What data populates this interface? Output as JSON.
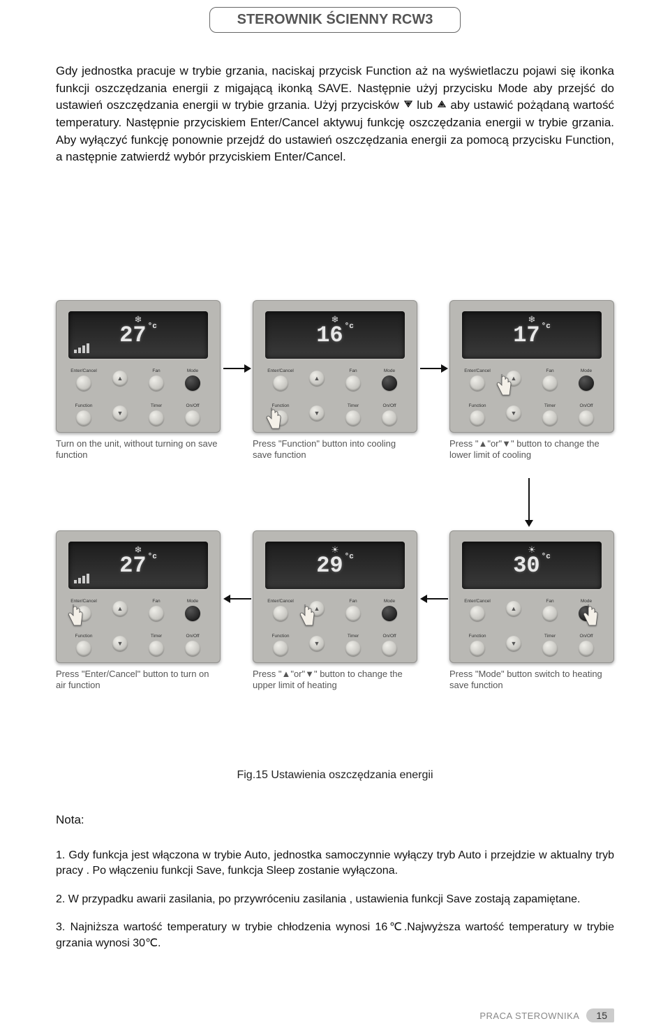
{
  "header": {
    "title": "STEROWNIK ŚCIENNY RCW3"
  },
  "intro": {
    "p1a": "Gdy jednostka pracuje w trybie grzania, naciskaj przycisk Function aż na wyświetlaczu pojawi się ikonka funkcji oszczędzania energii z migającą ikonką SAVE. Następnie użyj przycisku Mode aby przejść do ustawień oszczędzania energii w trybie grzania. Użyj przycisków ",
    "p1b": " lub ",
    "p1c": " aby ustawić pożądaną wartość temperatury. Następnie przyciskiem Enter/Cancel aktywuj funkcję oszczędzania energii w trybie grzania. Aby wyłączyć funkcję ponownie przejdź do ustawień oszczędzania energii za pomocą przycisku Function, a następnie zatwierdź wybór przyciskiem Enter/Cancel."
  },
  "panels": {
    "buttons_row1": [
      {
        "label": "Enter/Cancel",
        "glyph": ""
      },
      {
        "label": "▲",
        "glyph": "▲"
      },
      {
        "label": "Fan",
        "glyph": ""
      },
      {
        "label": "Mode",
        "glyph": "",
        "dark": true
      }
    ],
    "buttons_row2": [
      {
        "label": "Function",
        "glyph": ""
      },
      {
        "label": "▼",
        "glyph": "▼"
      },
      {
        "label": "Timer",
        "glyph": ""
      },
      {
        "label": "On/Off",
        "glyph": ""
      }
    ],
    "p1": {
      "temp": "27",
      "caption": "Turn on the unit, without turning on save function"
    },
    "p2": {
      "temp": "16",
      "caption": "Press \"Function\" button into cooling save function"
    },
    "p3": {
      "temp": "17",
      "caption": "Press \"▲\"or\"▼\" button to change the lower limit of cooling"
    },
    "p4": {
      "temp": "27",
      "caption": "Press \"Enter/Cancel\" button to turn on air function"
    },
    "p5": {
      "temp": "29",
      "caption": "Press \"▲\"or\"▼\" button to change the upper limit of heating"
    },
    "p6": {
      "temp": "30",
      "caption": "Press \"Mode\" button switch to heating save function"
    }
  },
  "figcap": "Fig.15  Ustawienia oszczędzania energii",
  "nota": {
    "head": "Nota:",
    "n1": "1. Gdy funkcja jest włączona w trybie Auto, jednostka samoczynnie wyłączy tryb Auto i przejdzie w aktualny  tryb pracy . Po włączeniu funkcji Save, funkcja Sleep zostanie wyłączona.",
    "n2": "2.  W przypadku awarii zasilania, po  przywróceniu  zasilania , ustawienia funkcji Save  zostają zapamiętane.",
    "n3": "3. Najniższa wartość temperatury w trybie chłodzenia wynosi 16℃.Najwyższa wartość temperatury w trybie grzania wynosi 30℃."
  },
  "footer": {
    "section": "PRACA STEROWNIKA",
    "page": "15"
  },
  "colors": {
    "panel_bg": "#b9b8b4",
    "lcd_bg": "#2a2a2a",
    "caption_color": "#555555",
    "text_color": "#111111"
  }
}
